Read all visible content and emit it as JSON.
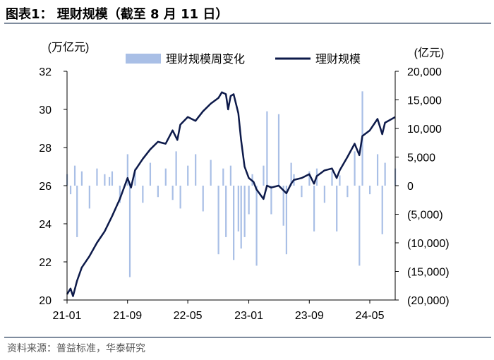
{
  "figure_title": "图表1： 理财规模（截至 8 月 11 日）",
  "source_note": "资料来源：普益标准，华泰研究",
  "colors": {
    "line": "#0d1a4a",
    "bar": "#a9bfe6",
    "axis": "#000000",
    "rule": "#7f8c9e"
  },
  "chart_data": {
    "type": "bar",
    "title": "",
    "y_left_unit": "(万亿元)",
    "y_right_unit": "(亿元)",
    "y_left_range": [
      20,
      32
    ],
    "y_right_range": [
      -20000,
      20000
    ],
    "y_left_ticks": [
      "20",
      "22",
      "24",
      "26",
      "28",
      "30",
      "32"
    ],
    "y_right_ticks": [
      "20,000",
      "15,000",
      "10,000",
      "5,000",
      "0",
      "(5,000)",
      "(10,000)",
      "(15,000)",
      "(20,000)"
    ],
    "x_ticks": [
      "21-01",
      "21-09",
      "22-05",
      "23-01",
      "23-09",
      "24-05"
    ],
    "x_range": [
      "2021-01",
      "2024-08-11"
    ],
    "legend": [
      "理财规模周变化",
      "理财规模"
    ],
    "series": [
      {
        "name": "理财规模",
        "axis": "left",
        "type": "line",
        "points": [
          [
            "2021-01",
            20.3
          ],
          [
            "2021-01-15",
            20.6
          ],
          [
            "2021-01-25",
            20.2
          ],
          [
            "2021-02-10",
            21.0
          ],
          [
            "2021-03",
            21.7
          ],
          [
            "2021-04",
            22.3
          ],
          [
            "2021-05",
            23.0
          ],
          [
            "2021-06",
            23.6
          ],
          [
            "2021-07",
            24.4
          ],
          [
            "2021-08",
            25.3
          ],
          [
            "2021-09",
            26.4
          ],
          [
            "2021-09-15",
            25.9
          ],
          [
            "2021-10",
            26.8
          ],
          [
            "2021-11",
            27.4
          ],
          [
            "2021-12",
            27.9
          ],
          [
            "2022-01",
            28.3
          ],
          [
            "2022-02",
            28.2
          ],
          [
            "2022-03",
            28.9
          ],
          [
            "2022-03-20",
            28.4
          ],
          [
            "2022-04",
            29.2
          ],
          [
            "2022-05",
            29.6
          ],
          [
            "2022-06",
            29.4
          ],
          [
            "2022-07",
            29.9
          ],
          [
            "2022-08",
            30.3
          ],
          [
            "2022-09",
            30.6
          ],
          [
            "2022-09-15",
            30.9
          ],
          [
            "2022-10",
            30.8
          ],
          [
            "2022-10-10",
            30.0
          ],
          [
            "2022-10-20",
            30.7
          ],
          [
            "2022-11",
            30.8
          ],
          [
            "2022-11-20",
            29.8
          ],
          [
            "2022-12",
            28.4
          ],
          [
            "2022-12-15",
            27.0
          ],
          [
            "2023-01",
            26.4
          ],
          [
            "2023-01-20",
            26.2
          ],
          [
            "2023-02",
            25.8
          ],
          [
            "2023-03",
            25.3
          ],
          [
            "2023-03-15",
            26.0
          ],
          [
            "2023-04",
            25.9
          ],
          [
            "2023-05",
            26.0
          ],
          [
            "2023-06",
            25.6
          ],
          [
            "2023-06-20",
            26.1
          ],
          [
            "2023-07",
            26.3
          ],
          [
            "2023-08",
            26.4
          ],
          [
            "2023-09",
            26.6
          ],
          [
            "2023-09-20",
            26.1
          ],
          [
            "2023-10",
            26.5
          ],
          [
            "2023-11",
            26.8
          ],
          [
            "2023-12",
            26.9
          ],
          [
            "2023-12-20",
            26.4
          ],
          [
            "2024-01",
            26.8
          ],
          [
            "2024-02",
            27.5
          ],
          [
            "2024-03",
            28.2
          ],
          [
            "2024-03-20",
            27.6
          ],
          [
            "2024-04",
            28.6
          ],
          [
            "2024-05",
            28.9
          ],
          [
            "2024-06",
            29.5
          ],
          [
            "2024-06-20",
            28.7
          ],
          [
            "2024-07",
            29.3
          ],
          [
            "2024-08-11",
            29.6
          ]
        ]
      },
      {
        "name": "理财规模周变化",
        "axis": "right",
        "type": "bar",
        "points": [
          [
            "2021-01",
            2000
          ],
          [
            "2021-01-15",
            -1500
          ],
          [
            "2021-02",
            3500
          ],
          [
            "2021-02-10",
            -9000
          ],
          [
            "2021-03",
            2500
          ],
          [
            "2021-04",
            -4000
          ],
          [
            "2021-05",
            3000
          ],
          [
            "2021-06",
            2000
          ],
          [
            "2021-06-20",
            1500
          ],
          [
            "2021-07",
            2500
          ],
          [
            "2021-08",
            -3000
          ],
          [
            "2021-09",
            5500
          ],
          [
            "2021-09-10",
            -16000
          ],
          [
            "2021-10",
            3000
          ],
          [
            "2021-11",
            -3000
          ],
          [
            "2021-12",
            4000
          ],
          [
            "2022-01",
            -2000
          ],
          [
            "2022-02",
            3000
          ],
          [
            "2022-03",
            -2500
          ],
          [
            "2022-03-15",
            6000
          ],
          [
            "2022-04",
            -4000
          ],
          [
            "2022-05",
            3500
          ],
          [
            "2022-06",
            5500
          ],
          [
            "2022-07",
            -4500
          ],
          [
            "2022-08",
            4500
          ],
          [
            "2022-09",
            -12000
          ],
          [
            "2022-09-20",
            3000
          ],
          [
            "2022-10",
            -9000
          ],
          [
            "2022-10-20",
            3500
          ],
          [
            "2022-11",
            -13000
          ],
          [
            "2022-11-20",
            -8000
          ],
          [
            "2022-12",
            -11000
          ],
          [
            "2022-12-15",
            -9000
          ],
          [
            "2023-01",
            -5000
          ],
          [
            "2023-01-15",
            2000
          ],
          [
            "2023-02",
            -14000
          ],
          [
            "2023-03",
            3500
          ],
          [
            "2023-03-15",
            13000
          ],
          [
            "2023-04",
            -5000
          ],
          [
            "2023-05",
            12500
          ],
          [
            "2023-05-20",
            -7000
          ],
          [
            "2023-06",
            -12000
          ],
          [
            "2023-06-20",
            4000
          ],
          [
            "2023-07",
            2000
          ],
          [
            "2023-08",
            -2000
          ],
          [
            "2023-09",
            2500
          ],
          [
            "2023-09-20",
            -8000
          ],
          [
            "2023-10",
            3000
          ],
          [
            "2023-11",
            -3000
          ],
          [
            "2023-12",
            2500
          ],
          [
            "2023-12-20",
            -8000
          ],
          [
            "2024-01",
            1800
          ],
          [
            "2024-02",
            -2000
          ],
          [
            "2024-03",
            6000
          ],
          [
            "2024-03-20",
            -14000
          ],
          [
            "2024-04",
            16500
          ],
          [
            "2024-05",
            -1500
          ],
          [
            "2024-06",
            5500
          ],
          [
            "2024-06-20",
            -8500
          ],
          [
            "2024-07",
            4000
          ],
          [
            "2024-08-11",
            3000
          ]
        ]
      }
    ]
  }
}
